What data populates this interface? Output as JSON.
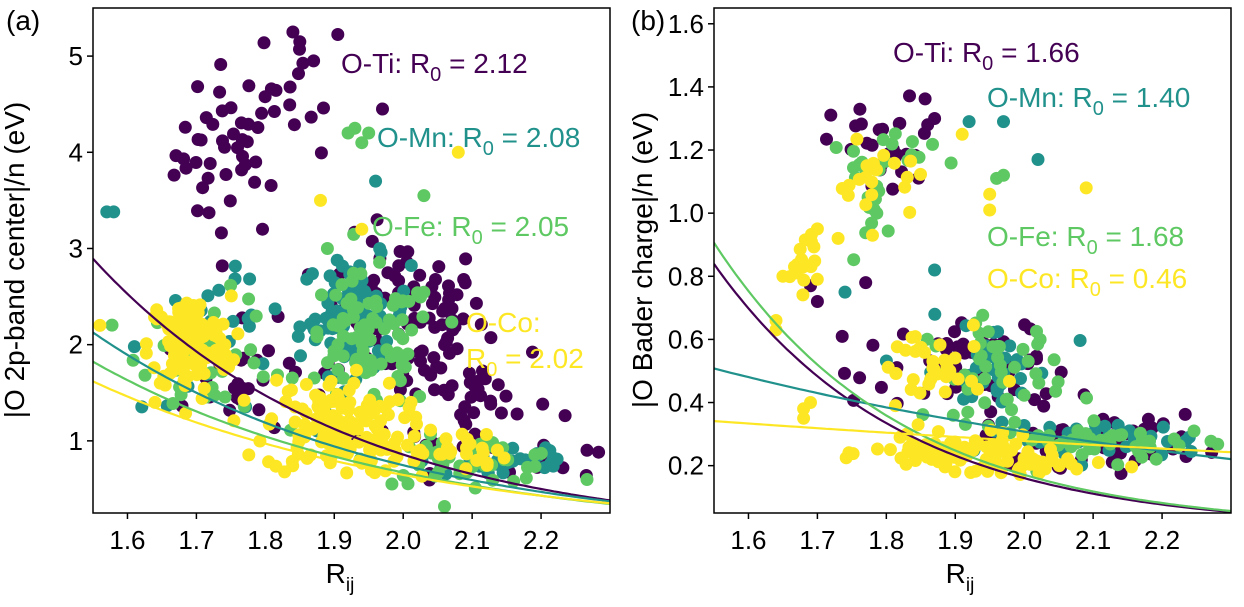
{
  "chart_data": [
    {
      "type": "scatter",
      "panel_label": "(a)",
      "xlabel": "R",
      "xlabel_sub": "ij",
      "ylabel": "|O 2p-band center|/n (eV)",
      "xlim": [
        1.55,
        2.3
      ],
      "ylim": [
        0.25,
        5.5
      ],
      "xticks": [
        1.6,
        1.7,
        1.8,
        1.9,
        2.0,
        2.1,
        2.2
      ],
      "xtick_labels": [
        "1.6",
        "1.7",
        "1.8",
        "1.9",
        "2.0",
        "2.1",
        "2.2"
      ],
      "yticks": [
        1,
        2,
        3,
        4,
        5
      ],
      "ytick_labels": [
        "1",
        "2",
        "3",
        "4",
        "5"
      ],
      "grid": false,
      "series": [
        {
          "key": "ti",
          "color": "#440154",
          "fit": {
            "A": 0.62,
            "R0": 2.12,
            "b": 0.37
          },
          "clusters": [
            {
              "x": 1.75,
              "y": 4.0,
              "sx": 0.04,
              "sy": 0.45,
              "n": 45
            },
            {
              "x": 1.86,
              "y": 4.7,
              "sx": 0.03,
              "sy": 0.35,
              "n": 12
            },
            {
              "x": 2.0,
              "y": 2.3,
              "sx": 0.06,
              "sy": 0.4,
              "n": 90
            },
            {
              "x": 2.1,
              "y": 1.4,
              "sx": 0.06,
              "sy": 0.35,
              "n": 45
            },
            {
              "x": 1.77,
              "y": 1.6,
              "sx": 0.06,
              "sy": 0.3,
              "n": 25
            },
            {
              "x": 2.2,
              "y": 0.8,
              "sx": 0.04,
              "sy": 0.1,
              "n": 10
            }
          ],
          "points": [
            [
              1.84,
              5.25
            ],
            [
              1.85,
              5.15
            ],
            [
              1.97,
              4.45
            ],
            [
              1.87,
              4.95
            ]
          ]
        },
        {
          "key": "mn",
          "color": "#21918c",
          "fit": {
            "A": 0.62,
            "R0": 2.08,
            "b": 0.43
          },
          "clusters": [
            {
              "x": 1.93,
              "y": 2.3,
              "sx": 0.04,
              "sy": 0.3,
              "n": 80
            },
            {
              "x": 1.74,
              "y": 2.0,
              "sx": 0.06,
              "sy": 0.35,
              "n": 25
            },
            {
              "x": 2.15,
              "y": 0.8,
              "sx": 0.06,
              "sy": 0.12,
              "n": 35
            }
          ],
          "points": [
            [
              1.57,
              3.38
            ],
            [
              1.58,
              3.38
            ],
            [
              1.61,
              1.98
            ],
            [
              1.96,
              3.7
            ]
          ]
        },
        {
          "key": "fe",
          "color": "#5ec962",
          "fit": {
            "A": 0.6,
            "R0": 2.05,
            "b": 0.45
          },
          "clusters": [
            {
              "x": 1.95,
              "y": 2.0,
              "sx": 0.05,
              "sy": 0.35,
              "n": 90
            },
            {
              "x": 1.72,
              "y": 1.9,
              "sx": 0.05,
              "sy": 0.3,
              "n": 35
            },
            {
              "x": 2.1,
              "y": 0.8,
              "sx": 0.07,
              "sy": 0.12,
              "n": 50
            }
          ],
          "points": [
            [
              1.92,
              4.2
            ],
            [
              1.94,
              4.1
            ],
            [
              1.95,
              4.2
            ],
            [
              1.93,
              4.25
            ],
            [
              2.03,
              3.55
            ],
            [
              1.89,
              3.0
            ]
          ]
        },
        {
          "key": "co",
          "color": "#fde725",
          "fit": {
            "A": 0.62,
            "R0": 2.02,
            "b": 0.49
          },
          "clusters": [
            {
              "x": 1.69,
              "y": 2.0,
              "sx": 0.03,
              "sy": 0.25,
              "n": 120
            },
            {
              "x": 1.9,
              "y": 1.15,
              "sx": 0.05,
              "sy": 0.25,
              "n": 140
            },
            {
              "x": 2.05,
              "y": 0.9,
              "sx": 0.05,
              "sy": 0.12,
              "n": 35
            }
          ],
          "points": [
            [
              1.56,
              2.2
            ],
            [
              1.88,
              3.5
            ],
            [
              2.08,
              4.0
            ],
            [
              1.94,
              3.2
            ],
            [
              1.64,
              1.4
            ]
          ]
        }
      ],
      "annotations": [
        {
          "key": "ti",
          "prefix": "O-Ti: R",
          "sub": "0",
          "suffix": " = 2.12",
          "color": "#440154"
        },
        {
          "key": "mn",
          "prefix": "O-Mn: R",
          "sub": "0",
          "suffix": " = 2.08",
          "color": "#21918c"
        },
        {
          "key": "fe",
          "prefix": "O-Fe: R",
          "sub": "0",
          "suffix": " = 2.05",
          "color": "#5ec962"
        },
        {
          "key": "co1",
          "prefix": "O-Co:",
          "sub": "",
          "suffix": "",
          "color": "#fde725"
        },
        {
          "key": "co2",
          "prefix": "R",
          "sub": "0",
          "suffix": " = 2.02",
          "color": "#fde725"
        }
      ]
    },
    {
      "type": "scatter",
      "panel_label": "(b)",
      "xlabel": "R",
      "xlabel_sub": "ij",
      "ylabel": "|O Bader charge|/n (eV)",
      "xlim": [
        1.55,
        2.3
      ],
      "ylim": [
        0.05,
        1.65
      ],
      "xticks": [
        1.6,
        1.7,
        1.8,
        1.9,
        2.0,
        2.1,
        2.2
      ],
      "xtick_labels": [
        "1.6",
        "1.7",
        "1.8",
        "1.9",
        "2.0",
        "2.1",
        "2.2"
      ],
      "yticks": [
        0.2,
        0.4,
        0.6,
        0.8,
        1.0,
        1.2,
        1.4,
        1.6
      ],
      "ytick_labels": [
        "0.2",
        "0.4",
        "0.6",
        "0.8",
        "1.0",
        "1.2",
        "1.4",
        "1.6"
      ],
      "grid": false,
      "series": [
        {
          "key": "ti",
          "color": "#440154",
          "fit": {
            "A": 0.56,
            "R0": 1.66,
            "b": 0.272
          },
          "clusters": [
            {
              "x": 1.8,
              "y": 1.2,
              "sx": 0.04,
              "sy": 0.08,
              "n": 30
            },
            {
              "x": 1.95,
              "y": 0.5,
              "sx": 0.06,
              "sy": 0.08,
              "n": 55
            },
            {
              "x": 2.1,
              "y": 0.28,
              "sx": 0.08,
              "sy": 0.04,
              "n": 45
            },
            {
              "x": 1.75,
              "y": 0.5,
              "sx": 0.02,
              "sy": 0.05,
              "n": 6
            }
          ],
          "points": [
            [
              1.69,
              0.77
            ],
            [
              1.7,
              0.72
            ],
            [
              1.77,
              0.78
            ],
            [
              1.87,
              1.3
            ],
            [
              1.86,
              1.28
            ]
          ]
        },
        {
          "key": "mn",
          "color": "#21918c",
          "fit": {
            "A": 0.6,
            "R0": 1.4,
            "b": 0.9
          },
          "clusters": [
            {
              "x": 1.95,
              "y": 0.5,
              "sx": 0.05,
              "sy": 0.08,
              "n": 40
            },
            {
              "x": 2.12,
              "y": 0.28,
              "sx": 0.07,
              "sy": 0.03,
              "n": 35
            }
          ],
          "points": [
            [
              1.92,
              1.29
            ],
            [
              1.97,
              1.29
            ],
            [
              2.02,
              1.17
            ],
            [
              1.87,
              0.82
            ],
            [
              1.74,
              0.75
            ],
            [
              1.89,
              0.25
            ]
          ]
        },
        {
          "key": "fe",
          "color": "#5ec962",
          "fit": {
            "A": 0.56,
            "R0": 1.68,
            "b": 0.27
          },
          "clusters": [
            {
              "x": 1.78,
              "y": 1.05,
              "sx": 0.02,
              "sy": 0.07,
              "n": 18
            },
            {
              "x": 1.84,
              "y": 1.2,
              "sx": 0.03,
              "sy": 0.05,
              "n": 12
            },
            {
              "x": 1.96,
              "y": 0.5,
              "sx": 0.05,
              "sy": 0.08,
              "n": 45
            },
            {
              "x": 2.12,
              "y": 0.27,
              "sx": 0.08,
              "sy": 0.03,
              "n": 45
            }
          ],
          "points": [
            [
              1.96,
              1.11
            ],
            [
              1.97,
              1.12
            ]
          ]
        },
        {
          "key": "co",
          "color": "#fde725",
          "fit": {
            "A": 0.56,
            "R0": 0.46,
            "b": 2.2
          },
          "clusters": [
            {
              "x": 1.68,
              "y": 0.86,
              "sx": 0.01,
              "sy": 0.05,
              "n": 18
            },
            {
              "x": 1.79,
              "y": 1.1,
              "sx": 0.03,
              "sy": 0.06,
              "n": 20
            },
            {
              "x": 1.9,
              "y": 0.24,
              "sx": 0.06,
              "sy": 0.025,
              "n": 90
            },
            {
              "x": 1.86,
              "y": 0.5,
              "sx": 0.04,
              "sy": 0.08,
              "n": 35
            },
            {
              "x": 2.02,
              "y": 0.2,
              "sx": 0.06,
              "sy": 0.02,
              "n": 30
            }
          ],
          "points": [
            [
              1.64,
              0.66
            ],
            [
              1.64,
              0.63
            ],
            [
              1.65,
              0.8
            ],
            [
              1.68,
              0.38
            ],
            [
              1.68,
              0.35
            ],
            [
              1.69,
              0.4
            ],
            [
              1.73,
              0.92
            ],
            [
              1.78,
              0.93
            ],
            [
              1.82,
              0.29
            ],
            [
              1.91,
              1.25
            ],
            [
              1.95,
              1.06
            ],
            [
              1.95,
              1.01
            ],
            [
              2.09,
              1.08
            ],
            [
              1.7,
              0.95
            ]
          ]
        }
      ],
      "annotations": [
        {
          "key": "ti",
          "prefix": "O-Ti: R",
          "sub": "0",
          "suffix": " = 1.66",
          "color": "#440154"
        },
        {
          "key": "mn",
          "prefix": "O-Mn: R",
          "sub": "0",
          "suffix": " = 1.40",
          "color": "#21918c"
        },
        {
          "key": "fe",
          "prefix": "O-Fe: R",
          "sub": "0",
          "suffix": " = 1.68",
          "color": "#5ec962"
        },
        {
          "key": "co",
          "prefix": "O-Co: R",
          "sub": "0",
          "suffix": " = 0.46",
          "color": "#fde725"
        }
      ]
    }
  ]
}
